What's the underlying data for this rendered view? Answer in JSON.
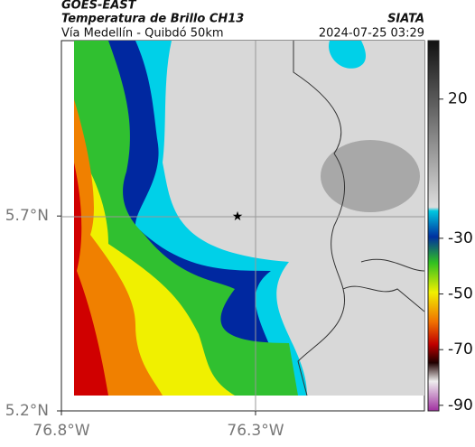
{
  "header": {
    "product": "GOES-EAST",
    "title": "Temperatura de Brillo CH13",
    "source": "SIATA",
    "subtitle": "Vía Medellín - Quibdó 50km",
    "datetime": "2024-07-25 03:29"
  },
  "map": {
    "lon_lim": [
      -76.8,
      -75.865
    ],
    "lat_lim": [
      5.2,
      6.15
    ],
    "lon_ticks": [
      {
        "value": -76.8,
        "label": "76.8°W"
      },
      {
        "value": -76.3,
        "label": "76.3°W"
      }
    ],
    "lat_ticks": [
      {
        "value": 5.7,
        "label": "5.7°N"
      },
      {
        "value": 5.2,
        "label": "5.2°N"
      }
    ]
  },
  "colorbar": {
    "lim": [
      41,
      -92
    ],
    "ticks": [
      20,
      -30,
      -50,
      -70,
      -90
    ]
  }
}
